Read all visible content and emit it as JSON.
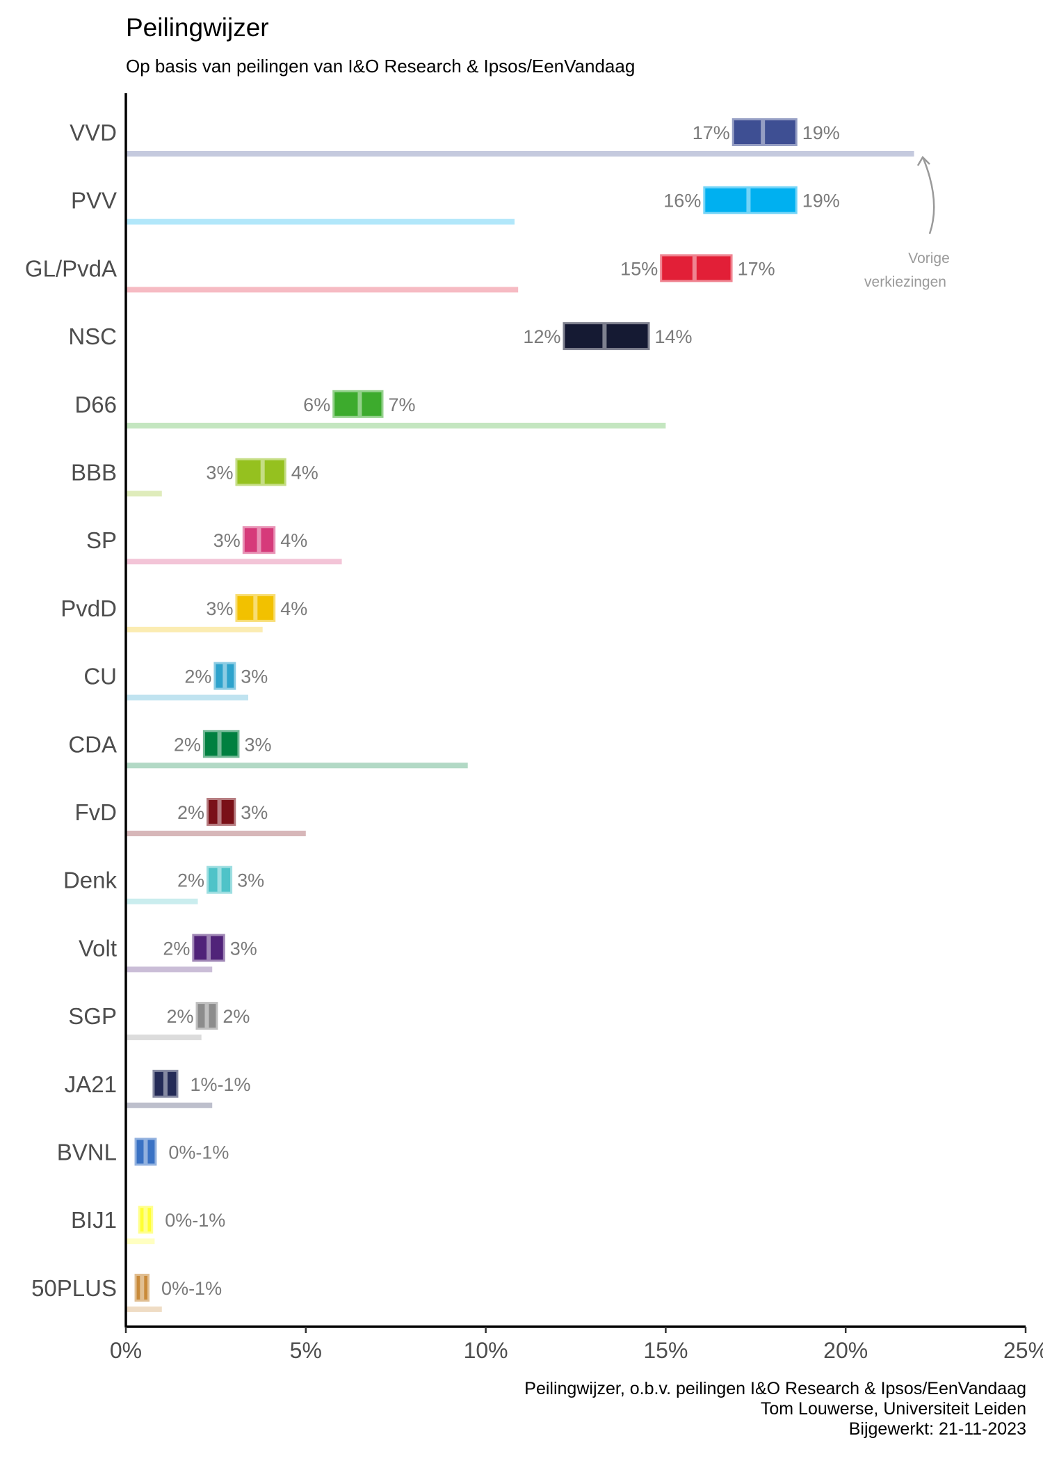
{
  "chart_data": {
    "type": "bar",
    "title": "Peilingwijzer",
    "subtitle": "Op basis van peilingen van I&O Research & Ipsos/EenVandaag",
    "xlim": [
      0,
      25
    ],
    "x_ticks": [
      "0%",
      "5%",
      "10%",
      "15%",
      "20%",
      "25%"
    ],
    "x_tick_values": [
      0,
      5,
      10,
      15,
      20,
      25
    ],
    "grid": false,
    "series_meaning": "range = peiling (min–max, %), point = midden, previous = vorige verkiezingen (%)",
    "annotation": {
      "lines": [
        "Vorige",
        "verkiezingen"
      ]
    },
    "caption": [
      "Peilingwijzer, o.b.v. peilingen I&O Research & Ipsos/EenVandaag",
      "Tom Louwerse, Universiteit Leiden",
      "Bijgewerkt: 21-11-2023"
    ],
    "parties": [
      {
        "name": "VVD",
        "lo": 17,
        "hi": 19,
        "lo_label": "17%",
        "hi_label": "19%",
        "combined": false,
        "box_lo": 16.9,
        "box_hi": 18.6,
        "mid": 17.7,
        "prev": 21.9,
        "color": "#3e4f93"
      },
      {
        "name": "PVV",
        "lo": 16,
        "hi": 19,
        "lo_label": "16%",
        "hi_label": "19%",
        "combined": false,
        "box_lo": 16.1,
        "box_hi": 18.6,
        "mid": 17.3,
        "prev": 10.8,
        "color": "#00b0f0"
      },
      {
        "name": "GL/PvdA",
        "lo": 15,
        "hi": 17,
        "lo_label": "15%",
        "hi_label": "17%",
        "combined": false,
        "box_lo": 14.9,
        "box_hi": 16.8,
        "mid": 15.8,
        "prev": 10.9,
        "color": "#e21f37"
      },
      {
        "name": "NSC",
        "lo": 12,
        "hi": 14,
        "lo_label": "12%",
        "hi_label": "14%",
        "combined": false,
        "box_lo": 12.2,
        "box_hi": 14.5,
        "mid": 13.3,
        "prev": null,
        "color": "#151a33"
      },
      {
        "name": "D66",
        "lo": 6,
        "hi": 7,
        "lo_label": "6%",
        "hi_label": "7%",
        "combined": false,
        "box_lo": 5.8,
        "box_hi": 7.1,
        "mid": 6.5,
        "prev": 15.0,
        "color": "#3dab2d"
      },
      {
        "name": "BBB",
        "lo": 3,
        "hi": 4,
        "lo_label": "3%",
        "hi_label": "4%",
        "combined": false,
        "box_lo": 3.1,
        "box_hi": 4.4,
        "mid": 3.8,
        "prev": 1.0,
        "color": "#95c11f"
      },
      {
        "name": "SP",
        "lo": 3,
        "hi": 4,
        "lo_label": "3%",
        "hi_label": "4%",
        "combined": false,
        "box_lo": 3.3,
        "box_hi": 4.1,
        "mid": 3.7,
        "prev": 6.0,
        "color": "#d63a7a"
      },
      {
        "name": "PvdD",
        "lo": 3,
        "hi": 4,
        "lo_label": "3%",
        "hi_label": "4%",
        "combined": false,
        "box_lo": 3.1,
        "box_hi": 4.1,
        "mid": 3.6,
        "prev": 3.8,
        "color": "#f2c100"
      },
      {
        "name": "CU",
        "lo": 2,
        "hi": 3,
        "lo_label": "2%",
        "hi_label": "3%",
        "combined": false,
        "box_lo": 2.5,
        "box_hi": 3.0,
        "mid": 2.75,
        "prev": 3.4,
        "color": "#2ea3cc"
      },
      {
        "name": "CDA",
        "lo": 2,
        "hi": 3,
        "lo_label": "2%",
        "hi_label": "3%",
        "combined": false,
        "box_lo": 2.2,
        "box_hi": 3.1,
        "mid": 2.6,
        "prev": 9.5,
        "color": "#008040"
      },
      {
        "name": "FvD",
        "lo": 2,
        "hi": 3,
        "lo_label": "2%",
        "hi_label": "3%",
        "combined": false,
        "box_lo": 2.3,
        "box_hi": 3.0,
        "mid": 2.6,
        "prev": 5.0,
        "color": "#7a1018"
      },
      {
        "name": "Denk",
        "lo": 2,
        "hi": 3,
        "lo_label": "2%",
        "hi_label": "3%",
        "combined": false,
        "box_lo": 2.3,
        "box_hi": 2.9,
        "mid": 2.6,
        "prev": 2.0,
        "color": "#4fc3c8"
      },
      {
        "name": "Volt",
        "lo": 2,
        "hi": 3,
        "lo_label": "2%",
        "hi_label": "3%",
        "combined": false,
        "box_lo": 1.9,
        "box_hi": 2.7,
        "mid": 2.3,
        "prev": 2.4,
        "color": "#502379"
      },
      {
        "name": "SGP",
        "lo": 2,
        "hi": 2,
        "lo_label": "2%",
        "hi_label": "2%",
        "combined": false,
        "box_lo": 2.0,
        "box_hi": 2.5,
        "mid": 2.25,
        "prev": 2.1,
        "color": "#8c8c8c"
      },
      {
        "name": "JA21",
        "lo": 1,
        "hi": 1,
        "lo_label": "1%",
        "hi_label": "1%",
        "combined": true,
        "box_lo": 0.8,
        "box_hi": 1.4,
        "mid": 1.1,
        "prev": 2.4,
        "color": "#242b57"
      },
      {
        "name": "BVNL",
        "lo": 0,
        "hi": 1,
        "lo_label": "0%",
        "hi_label": "1%",
        "combined": true,
        "box_lo": 0.3,
        "box_hi": 0.8,
        "mid": 0.55,
        "prev": null,
        "color": "#3a72c4"
      },
      {
        "name": "BIJ1",
        "lo": 0,
        "hi": 1,
        "lo_label": "0%",
        "hi_label": "1%",
        "combined": true,
        "box_lo": 0.4,
        "box_hi": 0.7,
        "mid": 0.55,
        "prev": 0.8,
        "color": "#ffff33"
      },
      {
        "name": "50PLUS",
        "lo": 0,
        "hi": 1,
        "lo_label": "0%",
        "hi_label": "1%",
        "combined": true,
        "box_lo": 0.3,
        "box_hi": 0.6,
        "mid": 0.45,
        "prev": 1.0,
        "color": "#c98a3a"
      }
    ]
  }
}
